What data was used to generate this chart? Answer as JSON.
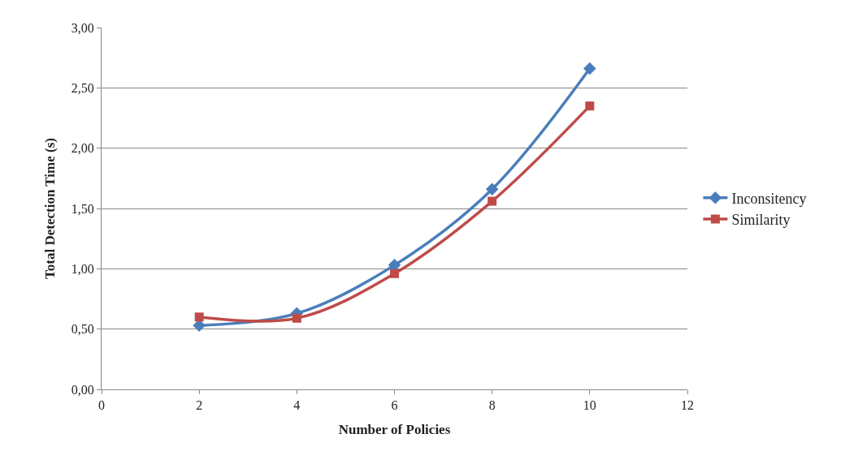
{
  "chart_data": {
    "type": "line",
    "xlabel": "Number of Policies",
    "ylabel": "Total Detection Time (s)",
    "x": [
      2,
      4,
      6,
      8,
      10
    ],
    "series": [
      {
        "name": "Inconsitency",
        "color": "#4a7ebb",
        "values": [
          0.53,
          0.63,
          1.03,
          1.66,
          2.66
        ],
        "marker": "diamond"
      },
      {
        "name": "Similarity",
        "color": "#be4b48",
        "values": [
          0.6,
          0.59,
          0.96,
          1.56,
          2.35
        ],
        "marker": "square"
      }
    ],
    "xlim": [
      0,
      12
    ],
    "xticks": [
      0,
      2,
      4,
      6,
      8,
      10,
      12
    ],
    "ylim": [
      0,
      3
    ],
    "yticks": [
      {
        "value": 0,
        "label": "0,00"
      },
      {
        "value": 0.5,
        "label": "0,50"
      },
      {
        "value": 1,
        "label": "1,00"
      },
      {
        "value": 1.5,
        "label": "1,50"
      },
      {
        "value": 2,
        "label": "2,00"
      },
      {
        "value": 2.5,
        "label": "2,50"
      },
      {
        "value": 3,
        "label": "3,00"
      }
    ],
    "grid": "y",
    "legend": "right",
    "line_style": "solid"
  }
}
